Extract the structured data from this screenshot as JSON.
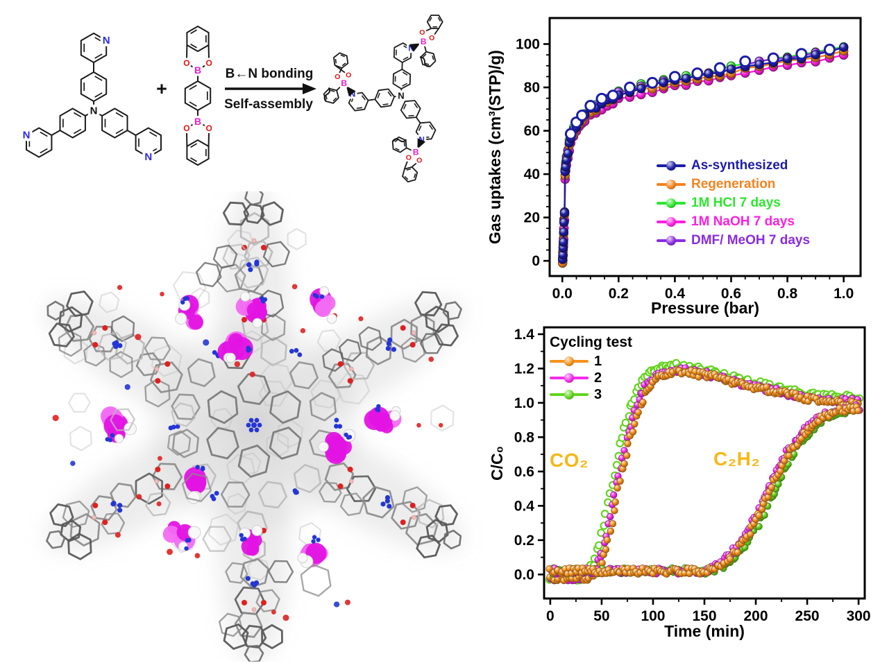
{
  "scheme": {
    "plus": "+",
    "arrow_label_top": "B←N bonding",
    "arrow_label_bottom": "Self-assembly",
    "atoms": {
      "nitrogen": "N",
      "boron": "B",
      "oxygen": "O"
    },
    "colors": {
      "nitrogen": "#2a2ae0",
      "boron": "#e81ec8",
      "oxygen": "#e81212",
      "bond": "#1a1a1a"
    }
  },
  "crystal": {
    "colors": {
      "stick": "#8b8b8b",
      "stick_dark": "#5e5e5e",
      "stick_light": "#b9b9b9",
      "nitrogen": "#2436d6",
      "oxygen": "#e02020",
      "boron": "#f0bcbc",
      "guest_magenta": "#e314e3",
      "guest_magenta_light": "#f26bf2",
      "hydrogen": "#f8f8f8"
    }
  },
  "chart_data": [
    {
      "id": "gas-uptake-isotherm",
      "type": "scatter",
      "xlabel": "Pressure (bar)",
      "ylabel": "Gas uptakes (cm³(STP)/g)",
      "xlim": [
        -0.045,
        1.06
      ],
      "ylim": [
        -7,
        112
      ],
      "xticks": {
        "labels": [
          "0.0",
          "0.2",
          "0.4",
          "0.6",
          "0.8",
          "1.0"
        ],
        "values": [
          0,
          0.2,
          0.4,
          0.6,
          0.8,
          1.0
        ],
        "minor_step": 0.05
      },
      "yticks": {
        "labels": [
          "0",
          "20",
          "40",
          "60",
          "80",
          "100"
        ],
        "values": [
          0,
          20,
          40,
          60,
          80,
          100
        ],
        "minor_step": 5
      },
      "grid": false,
      "legend_position": "inside-bottom-right",
      "pressure": [
        0.001,
        0.002,
        0.003,
        0.004,
        0.005,
        0.006,
        0.008,
        0.01,
        0.012,
        0.015,
        0.02,
        0.025,
        0.03,
        0.04,
        0.05,
        0.06,
        0.07,
        0.08,
        0.1,
        0.12,
        0.14,
        0.16,
        0.18,
        0.2,
        0.24,
        0.28,
        0.32,
        0.36,
        0.4,
        0.44,
        0.48,
        0.52,
        0.56,
        0.6,
        0.65,
        0.7,
        0.75,
        0.8,
        0.85,
        0.9,
        0.95,
        1.0
      ],
      "base_uptake": [
        0,
        3,
        6,
        9,
        13,
        18,
        22,
        41,
        44,
        47,
        50,
        54,
        57,
        60,
        62,
        64,
        66,
        67,
        70,
        71,
        73,
        74,
        75,
        77,
        78,
        80,
        81,
        82,
        83,
        84,
        85,
        86,
        87,
        88,
        90,
        91,
        92,
        93,
        94,
        95,
        96,
        98
      ],
      "series": [
        {
          "name": "As-synthesized",
          "color": "#1d1da6",
          "offset": 0
        },
        {
          "name": "Regeneration",
          "color": "#f5821f",
          "offset": -1
        },
        {
          "name": "1M HCl 7 days",
          "color": "#2ee62e",
          "offset": 1.2
        },
        {
          "name": "1M NaOH 7 days",
          "color": "#ff1fe1",
          "offset": -2.8
        },
        {
          "name": "DMF/ MeOH 7 days",
          "color": "#8a2be2",
          "offset": 0.5
        }
      ],
      "desorption_overlay": {
        "series": "As-synthesized",
        "color": "#1d1da6",
        "offset": 1.5
      }
    },
    {
      "id": "breakthrough-cycling",
      "type": "scatter",
      "legend_title": "Cycling test",
      "xlabel": "Time (min)",
      "ylabel": "C/C₀",
      "xlim": [
        -6,
        306
      ],
      "ylim": [
        -0.14,
        1.44
      ],
      "xticks": {
        "labels": [
          "0",
          "50",
          "100",
          "150",
          "200",
          "250",
          "300"
        ],
        "values": [
          0,
          50,
          100,
          150,
          200,
          250,
          300
        ],
        "minor_step": 25
      },
      "yticks": {
        "labels": [
          "0.0",
          "0.2",
          "0.4",
          "0.6",
          "0.8",
          "1.0",
          "1.2",
          "1.4"
        ],
        "values": [
          0,
          0.2,
          0.4,
          0.6,
          0.8,
          1.0,
          1.2,
          1.4
        ],
        "minor_step": 0.1
      },
      "annotations": [
        {
          "text": "CO₂",
          "color": "#f7b718",
          "x": 28,
          "y": 0.62
        },
        {
          "text": "C₂H₂",
          "color": "#f7b718",
          "x": 185,
          "y": 0.62
        }
      ],
      "co2_anchor": {
        "x": [
          0,
          40,
          45,
          50,
          55,
          60,
          65,
          70,
          75,
          80,
          85,
          90,
          95,
          100,
          110,
          120,
          130,
          140,
          150,
          160,
          170,
          180,
          190,
          200,
          215,
          230,
          245,
          260,
          275,
          290,
          300
        ],
        "y": [
          -0.02,
          -0.02,
          0.02,
          0.08,
          0.18,
          0.31,
          0.46,
          0.6,
          0.73,
          0.84,
          0.94,
          1.02,
          1.08,
          1.12,
          1.16,
          1.18,
          1.18,
          1.17,
          1.16,
          1.15,
          1.13,
          1.12,
          1.1,
          1.09,
          1.07,
          1.05,
          1.03,
          1.02,
          1.01,
          1.0,
          1.0
        ]
      },
      "c2h2_anchor": {
        "x": [
          0,
          150,
          158,
          165,
          172,
          180,
          188,
          196,
          204,
          212,
          220,
          230,
          240,
          250,
          260,
          270,
          280,
          290,
          300
        ],
        "y": [
          0.02,
          0.02,
          0.03,
          0.05,
          0.08,
          0.13,
          0.19,
          0.27,
          0.36,
          0.46,
          0.56,
          0.68,
          0.77,
          0.84,
          0.89,
          0.93,
          0.95,
          0.96,
          0.97
        ]
      },
      "series": [
        {
          "name": "1",
          "color": "#f6921e",
          "co2_xshift": 0,
          "c2h2_xshift": 0,
          "peak_scale": 1.0
        },
        {
          "name": "2",
          "color": "#f32bea",
          "co2_xshift": -3,
          "c2h2_xshift": -3,
          "peak_scale": 1.01
        },
        {
          "name": "3",
          "color": "#63d41d",
          "co2_xshift": -7,
          "c2h2_xshift": 4,
          "peak_scale": 1.03
        }
      ]
    }
  ]
}
